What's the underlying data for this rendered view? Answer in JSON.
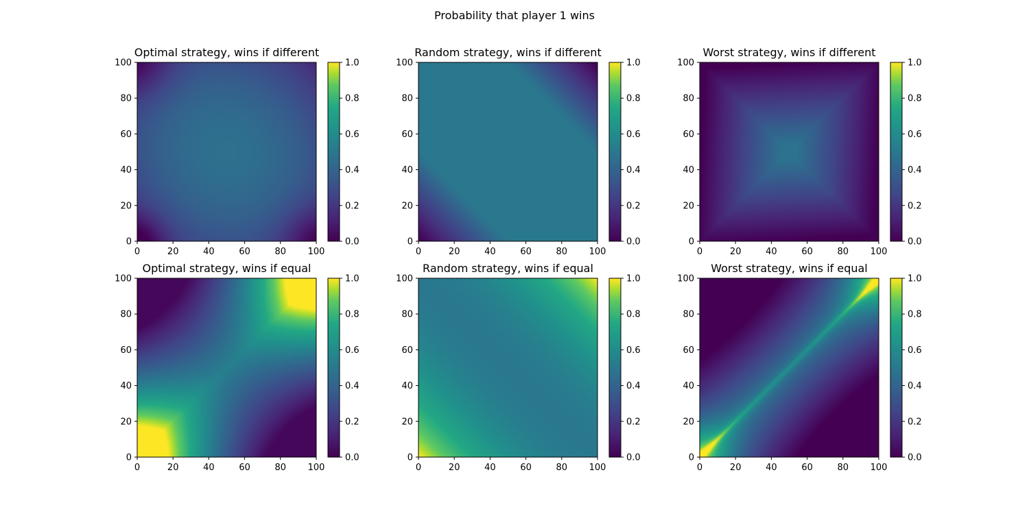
{
  "figure": {
    "title": "Probability that player 1 wins"
  },
  "chart_data": [
    {
      "type": "heatmap",
      "title": "Optimal strategy, wins if different",
      "colormap": "viridis",
      "xlim": [
        0,
        100
      ],
      "ylim": [
        0,
        100
      ],
      "xticks": [
        0,
        20,
        40,
        60,
        80,
        100
      ],
      "yticks": [
        0,
        20,
        40,
        60,
        80,
        100
      ],
      "colorbar": {
        "range": [
          0.0,
          1.0
        ],
        "ticks": [
          "0.0",
          "0.2",
          "0.4",
          "0.6",
          "0.8",
          "1.0"
        ]
      },
      "grid": false,
      "surface": "opt-diff",
      "sample_values": [
        {
          "x": 50,
          "y": 50,
          "value": 0.45
        },
        {
          "x": 0,
          "y": 0,
          "value": 0.1
        },
        {
          "x": 100,
          "y": 100,
          "value": 0.2
        },
        {
          "x": 0,
          "y": 100,
          "value": 0.15
        },
        {
          "x": 100,
          "y": 0,
          "value": 0.08
        }
      ]
    },
    {
      "type": "heatmap",
      "title": "Random strategy, wins if different",
      "colormap": "viridis",
      "xlim": [
        0,
        100
      ],
      "ylim": [
        0,
        100
      ],
      "xticks": [
        0,
        20,
        40,
        60,
        80,
        100
      ],
      "yticks": [
        0,
        20,
        40,
        60,
        80,
        100
      ],
      "colorbar": {
        "range": [
          0.0,
          1.0
        ],
        "ticks": [
          "0.0",
          "0.2",
          "0.4",
          "0.6",
          "0.8",
          "1.0"
        ]
      },
      "grid": false,
      "surface": "rand-diff",
      "sample_values": [
        {
          "x": 50,
          "y": 50,
          "value": 0.5
        },
        {
          "x": 0,
          "y": 0,
          "value": 0.0
        },
        {
          "x": 100,
          "y": 100,
          "value": 0.0
        },
        {
          "x": 0,
          "y": 100,
          "value": 0.5
        },
        {
          "x": 100,
          "y": 0,
          "value": 0.5
        }
      ]
    },
    {
      "type": "heatmap",
      "title": "Worst strategy, wins if different",
      "colormap": "viridis",
      "xlim": [
        0,
        100
      ],
      "ylim": [
        0,
        100
      ],
      "xticks": [
        0,
        20,
        40,
        60,
        80,
        100
      ],
      "yticks": [
        0,
        20,
        40,
        60,
        80,
        100
      ],
      "colorbar": {
        "range": [
          0.0,
          1.0
        ],
        "ticks": [
          "0.0",
          "0.2",
          "0.4",
          "0.6",
          "0.8",
          "1.0"
        ]
      },
      "grid": false,
      "surface": "worst-diff",
      "sample_values": [
        {
          "x": 50,
          "y": 50,
          "value": 0.45
        },
        {
          "x": 0,
          "y": 50,
          "value": 0.0
        },
        {
          "x": 50,
          "y": 0,
          "value": 0.0
        },
        {
          "x": 25,
          "y": 25,
          "value": 0.3
        }
      ]
    },
    {
      "type": "heatmap",
      "title": "Optimal strategy, wins if equal",
      "colormap": "viridis",
      "xlim": [
        0,
        100
      ],
      "ylim": [
        0,
        100
      ],
      "xticks": [
        0,
        20,
        40,
        60,
        80,
        100
      ],
      "yticks": [
        0,
        20,
        40,
        60,
        80,
        100
      ],
      "colorbar": {
        "range": [
          0.0,
          1.0
        ],
        "ticks": [
          "0.0",
          "0.2",
          "0.4",
          "0.6",
          "0.8",
          "1.0"
        ]
      },
      "grid": false,
      "surface": "opt-eq",
      "sample_values": [
        {
          "x": 0,
          "y": 0,
          "value": 1.0
        },
        {
          "x": 100,
          "y": 100,
          "value": 1.0
        },
        {
          "x": 0,
          "y": 100,
          "value": 0.05
        },
        {
          "x": 100,
          "y": 0,
          "value": 0.05
        },
        {
          "x": 50,
          "y": 50,
          "value": 0.5
        }
      ]
    },
    {
      "type": "heatmap",
      "title": "Random strategy, wins if equal",
      "colormap": "viridis",
      "xlim": [
        0,
        100
      ],
      "ylim": [
        0,
        100
      ],
      "xticks": [
        0,
        20,
        40,
        60,
        80,
        100
      ],
      "yticks": [
        0,
        20,
        40,
        60,
        80,
        100
      ],
      "colorbar": {
        "range": [
          0.0,
          1.0
        ],
        "ticks": [
          "0.0",
          "0.2",
          "0.4",
          "0.6",
          "0.8",
          "1.0"
        ]
      },
      "grid": false,
      "surface": "rand-eq",
      "sample_values": [
        {
          "x": 0,
          "y": 0,
          "value": 1.0
        },
        {
          "x": 100,
          "y": 100,
          "value": 1.0
        },
        {
          "x": 50,
          "y": 50,
          "value": 0.5
        },
        {
          "x": 0,
          "y": 100,
          "value": 0.5
        },
        {
          "x": 100,
          "y": 0,
          "value": 0.5
        }
      ]
    },
    {
      "type": "heatmap",
      "title": "Worst strategy, wins if equal",
      "colormap": "viridis",
      "xlim": [
        0,
        100
      ],
      "ylim": [
        0,
        100
      ],
      "xticks": [
        0,
        20,
        40,
        60,
        80,
        100
      ],
      "yticks": [
        0,
        20,
        40,
        60,
        80,
        100
      ],
      "colorbar": {
        "range": [
          0.0,
          1.0
        ],
        "ticks": [
          "0.0",
          "0.2",
          "0.4",
          "0.6",
          "0.8",
          "1.0"
        ]
      },
      "grid": false,
      "surface": "worst-eq",
      "sample_values": [
        {
          "x": 0,
          "y": 0,
          "value": 1.0
        },
        {
          "x": 100,
          "y": 100,
          "value": 1.0
        },
        {
          "x": 50,
          "y": 50,
          "value": 0.6
        },
        {
          "x": 0,
          "y": 100,
          "value": 0.0
        },
        {
          "x": 100,
          "y": 0,
          "value": 0.0
        }
      ]
    }
  ]
}
